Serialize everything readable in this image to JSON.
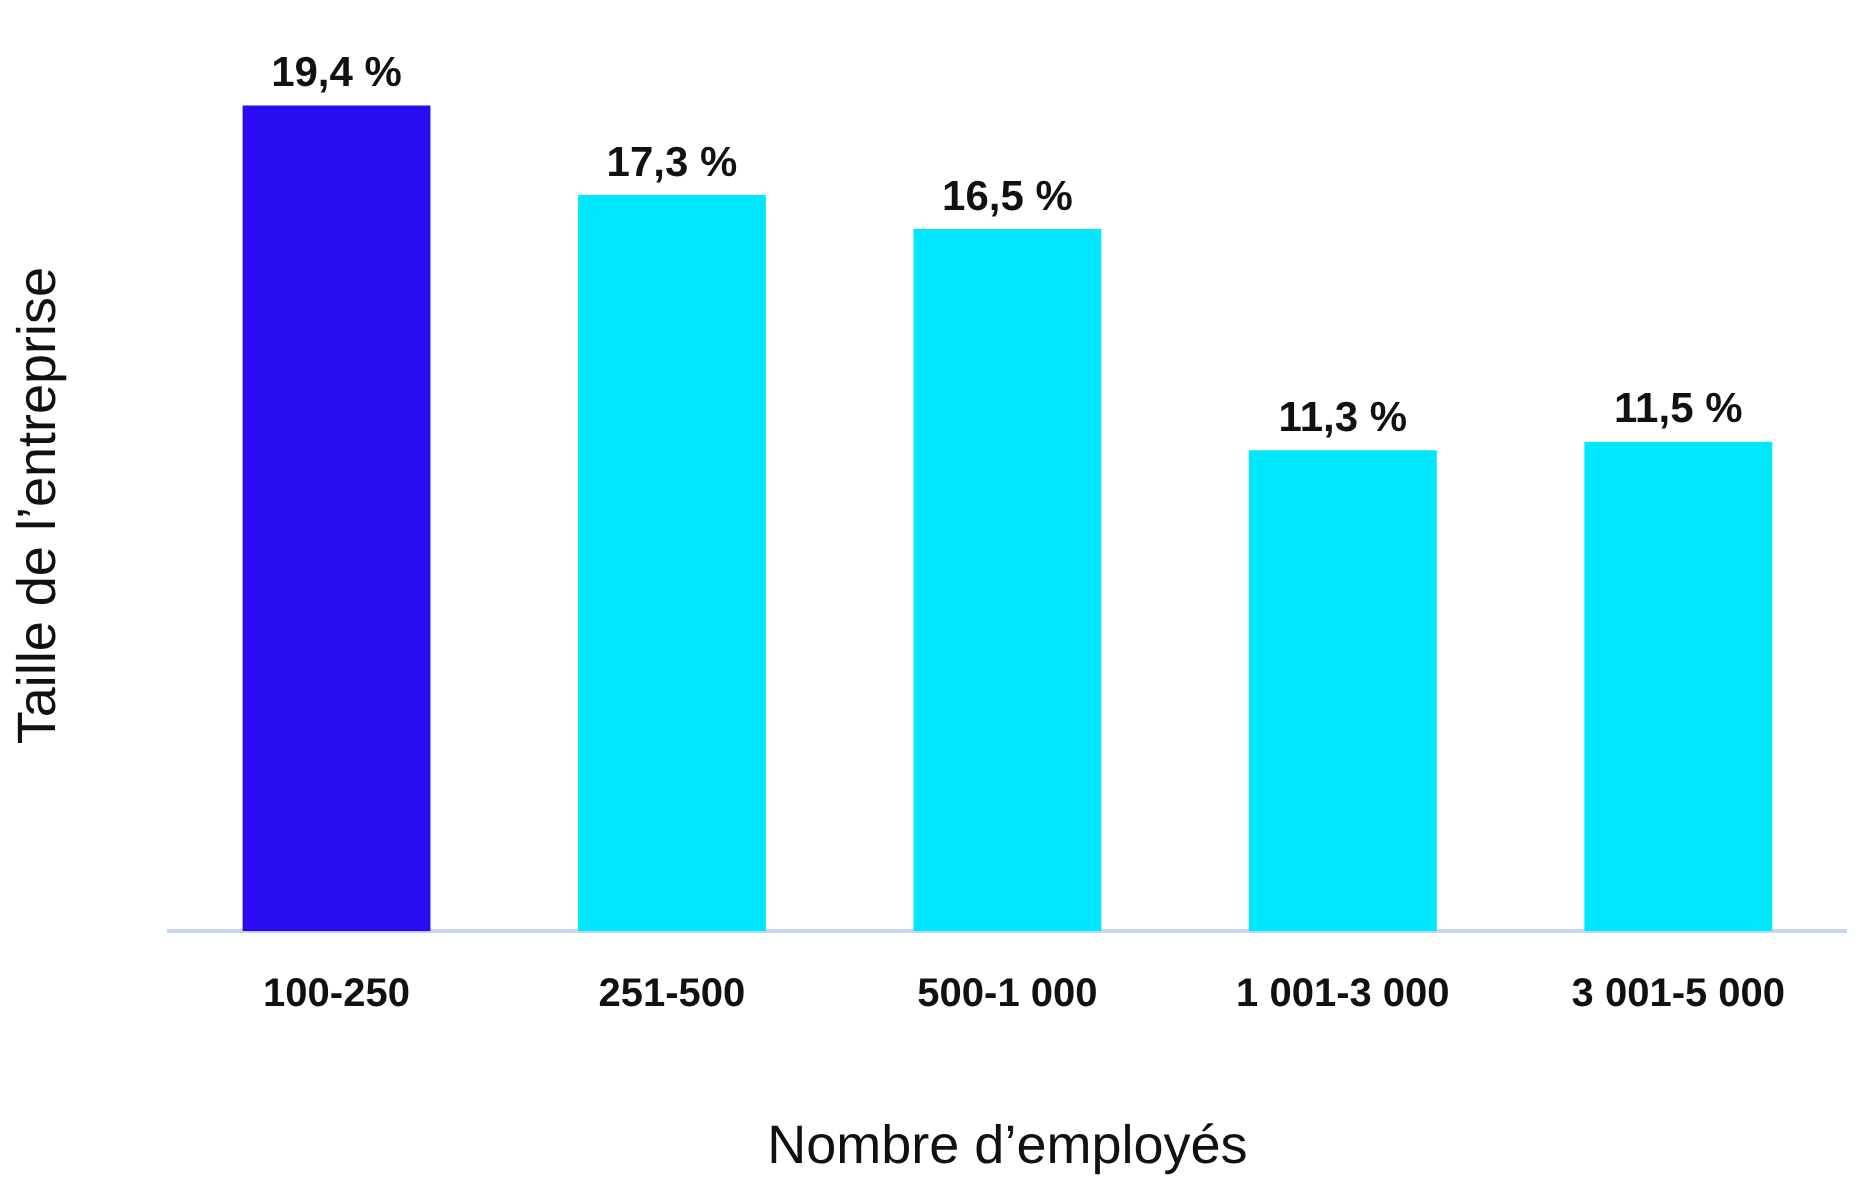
{
  "chart_data": {
    "type": "bar",
    "xlabel": "Nombre d’employés",
    "ylabel": "Taille de l’entreprise",
    "categories": [
      "100-250",
      "251-500",
      "500-1 000",
      "1 001-3 000",
      "3 001-5 000"
    ],
    "values": [
      19.4,
      17.3,
      16.5,
      11.3,
      11.5
    ],
    "value_labels": [
      "19,4 %",
      "17,3 %",
      "16,5 %",
      "11,3 %",
      "11,5 %"
    ],
    "colors": [
      "#2a0cf2",
      "#00e8ff",
      "#00e8ff",
      "#00e8ff",
      "#00e8ff"
    ],
    "grid": false,
    "legend": false
  }
}
